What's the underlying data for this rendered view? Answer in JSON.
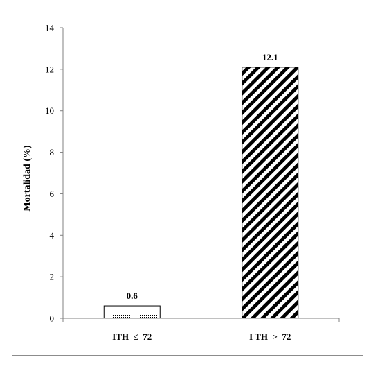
{
  "chart_data": {
    "type": "bar",
    "categories": [
      "ITH  ≤  72",
      "I TH  >  72"
    ],
    "values": [
      0.6,
      12.1
    ],
    "data_labels": [
      "0.6",
      "12.1"
    ],
    "title": "",
    "xlabel": "",
    "ylabel": "Mortalidad (%)",
    "ylim": [
      0,
      14
    ],
    "yticks": [
      0,
      2,
      4,
      6,
      8,
      10,
      12,
      14
    ],
    "grid": false,
    "legend": "none",
    "fills": [
      "dotted",
      "diagonal-stripes"
    ],
    "colors": {
      "axis": "#808080",
      "bar_edge": "#000000",
      "pattern": "#000000",
      "frame": "#8c8c8c"
    }
  }
}
